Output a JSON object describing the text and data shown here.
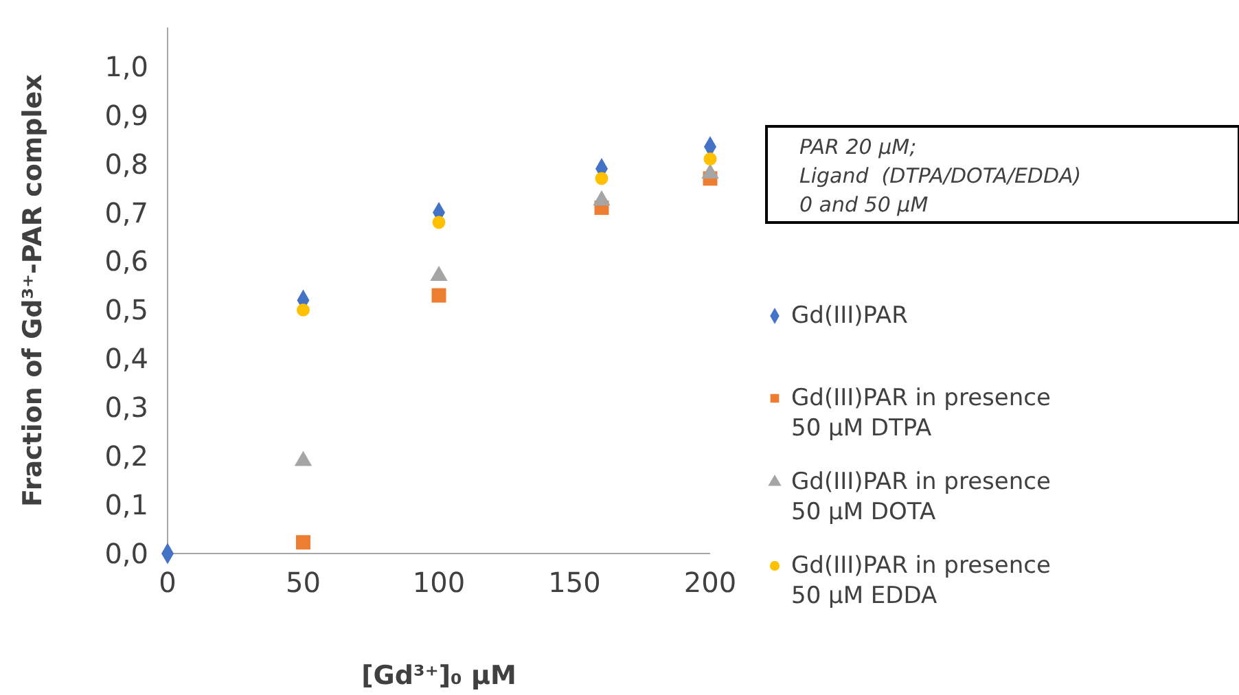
{
  "chart_data": {
    "type": "scatter",
    "xlabel": "[Gd³⁺]₀ μM",
    "ylabel": "Fraction of Gd³⁺-PAR complex",
    "xlim": [
      0,
      200
    ],
    "xticks": [
      0,
      50,
      100,
      150,
      200
    ],
    "ylim": [
      0,
      1.08
    ],
    "yticks": [
      {
        "value": 0,
        "label": "0,0"
      },
      {
        "value": 0.1,
        "label": "0,1"
      },
      {
        "value": 0.2,
        "label": "0,2"
      },
      {
        "value": 0.3,
        "label": "0,3"
      },
      {
        "value": 0.4,
        "label": "0,4"
      },
      {
        "value": 0.5,
        "label": "0,5"
      },
      {
        "value": 0.6,
        "label": "0,6"
      },
      {
        "value": 0.7,
        "label": "0,7"
      },
      {
        "value": 0.8,
        "label": "0,8"
      },
      {
        "value": 0.9,
        "label": "0,9"
      },
      {
        "value": 1,
        "label": "1,0"
      }
    ],
    "grid": false,
    "legend": "right",
    "annotations": [
      "PAR 20 μM;\nLigand  (DTPA/DOTA/EDDA)\n0 and 50 μM"
    ],
    "series": [
      {
        "name": "Gd(III)PAR",
        "color": "#4472c4",
        "marker": "diamond",
        "x": [
          0,
          50,
          100,
          160,
          200
        ],
        "values": [
          0,
          0.52,
          0.7,
          0.79,
          0.835
        ]
      },
      {
        "name": "Gd(III)PAR in presence 50 μM DTPA",
        "color": "#ed7d31",
        "marker": "square",
        "x": [
          50,
          100,
          160,
          200
        ],
        "values": [
          0.023,
          0.53,
          0.71,
          0.77
        ]
      },
      {
        "name": "Gd(III)PAR in presence 50 μM DOTA",
        "color": "#a5a5a5",
        "marker": "triangle",
        "x": [
          50,
          100,
          160,
          200
        ],
        "values": [
          0.19,
          0.57,
          0.725,
          0.78
        ]
      },
      {
        "name": "Gd(III)PAR in presence 50 μM EDDA",
        "color": "#ffc000",
        "marker": "circle",
        "x": [
          50,
          100,
          160,
          200
        ],
        "values": [
          0.5,
          0.68,
          0.77,
          0.81
        ]
      }
    ]
  }
}
